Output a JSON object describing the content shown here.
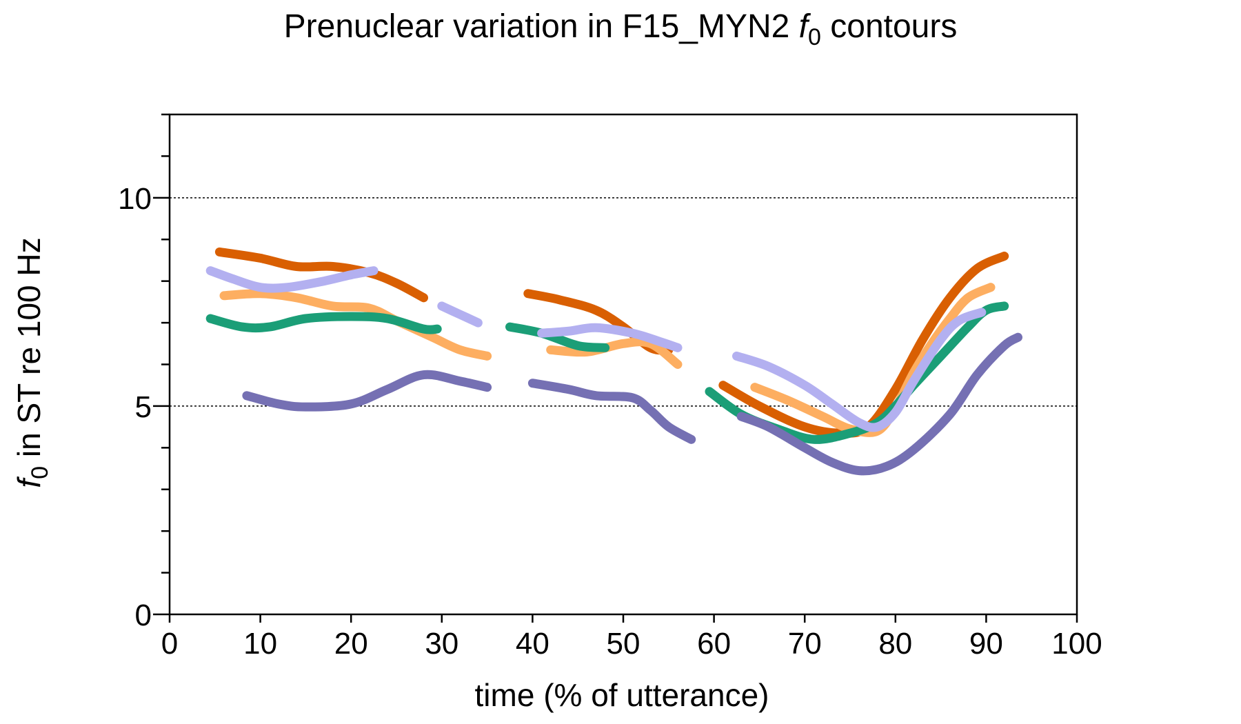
{
  "chart_data": {
    "type": "line",
    "title": {
      "prefix": "Prenuclear variation in F15_MYN2 ",
      "symbol": "f",
      "subscript": "0",
      "suffix": " contours"
    },
    "xlabel": "time (% of utterance)",
    "ylabel": {
      "symbol": "f",
      "subscript": "0",
      "suffix": " in ST re 100 Hz"
    },
    "xlim": [
      0,
      100
    ],
    "ylim": [
      0,
      12
    ],
    "x_ticks": [
      0,
      10,
      20,
      30,
      40,
      50,
      60,
      70,
      80,
      90,
      100
    ],
    "y_ticks_labeled": [
      0,
      5,
      10
    ],
    "y_ticks_minor": [
      1,
      2,
      3,
      4,
      6,
      7,
      8,
      9,
      11,
      12
    ],
    "reference_lines_y": [
      5,
      10
    ],
    "grid": false,
    "legend": "none",
    "series": [
      {
        "color": "#d95f02",
        "segments": [
          [
            [
              5.5,
              8.7
            ],
            [
              10,
              8.55
            ],
            [
              14,
              8.35
            ],
            [
              18,
              8.35
            ],
            [
              22,
              8.2
            ],
            [
              25,
              7.95
            ],
            [
              28,
              7.6
            ]
          ],
          [
            [
              39.5,
              7.7
            ],
            [
              43,
              7.55
            ],
            [
              47,
              7.3
            ],
            [
              50,
              6.9
            ],
            [
              53,
              6.4
            ],
            [
              55,
              6.35
            ]
          ],
          [
            [
              61,
              5.5
            ],
            [
              65,
              5.0
            ],
            [
              70,
              4.5
            ],
            [
              74,
              4.35
            ],
            [
              77,
              4.5
            ],
            [
              80,
              5.4
            ],
            [
              83,
              6.6
            ],
            [
              86,
              7.6
            ],
            [
              89,
              8.3
            ],
            [
              92,
              8.6
            ]
          ]
        ]
      },
      {
        "color": "#fdae61",
        "segments": [
          [
            [
              6,
              7.65
            ],
            [
              10,
              7.7
            ],
            [
              14,
              7.6
            ],
            [
              18,
              7.4
            ],
            [
              22,
              7.35
            ],
            [
              25,
              7.05
            ],
            [
              29,
              6.65
            ],
            [
              32,
              6.35
            ],
            [
              35,
              6.2
            ]
          ],
          [
            [
              42,
              6.35
            ],
            [
              46,
              6.3
            ],
            [
              50,
              6.5
            ],
            [
              53,
              6.5
            ],
            [
              56,
              6.0
            ]
          ],
          [
            [
              64.5,
              5.45
            ],
            [
              68,
              5.15
            ],
            [
              72,
              4.75
            ],
            [
              75,
              4.45
            ],
            [
              78,
              4.4
            ],
            [
              80,
              4.95
            ],
            [
              82,
              5.8
            ],
            [
              84,
              6.5
            ],
            [
              86,
              7.1
            ],
            [
              88,
              7.6
            ],
            [
              90.5,
              7.85
            ]
          ]
        ]
      },
      {
        "color": "#1b9e77",
        "segments": [
          [
            [
              4.5,
              7.1
            ],
            [
              8,
              6.9
            ],
            [
              11,
              6.9
            ],
            [
              15,
              7.1
            ],
            [
              20,
              7.15
            ],
            [
              24,
              7.1
            ],
            [
              28,
              6.85
            ],
            [
              29.5,
              6.85
            ]
          ],
          [
            [
              37.5,
              6.9
            ],
            [
              41,
              6.75
            ],
            [
              45,
              6.45
            ],
            [
              48,
              6.4
            ]
          ],
          [
            [
              59.5,
              5.35
            ],
            [
              63,
              4.8
            ],
            [
              67,
              4.45
            ],
            [
              71,
              4.2
            ],
            [
              75,
              4.35
            ],
            [
              78,
              4.6
            ],
            [
              80,
              5.0
            ],
            [
              82,
              5.5
            ],
            [
              85,
              6.2
            ],
            [
              88,
              6.9
            ],
            [
              90,
              7.3
            ],
            [
              92,
              7.4
            ]
          ]
        ]
      },
      {
        "color": "#7570b3",
        "segments": [
          [
            [
              8.5,
              5.25
            ],
            [
              12,
              5.05
            ],
            [
              15,
              4.98
            ],
            [
              20,
              5.05
            ],
            [
              24,
              5.4
            ],
            [
              28,
              5.75
            ],
            [
              32,
              5.6
            ],
            [
              35,
              5.45
            ]
          ],
          [
            [
              40,
              5.55
            ],
            [
              44,
              5.4
            ],
            [
              47,
              5.25
            ],
            [
              51,
              5.2
            ],
            [
              53,
              4.9
            ],
            [
              55,
              4.5
            ],
            [
              57.5,
              4.2
            ]
          ],
          [
            [
              63,
              4.75
            ],
            [
              66,
              4.5
            ],
            [
              70,
              4.0
            ],
            [
              73,
              3.65
            ],
            [
              76,
              3.45
            ],
            [
              79,
              3.55
            ],
            [
              82,
              3.95
            ],
            [
              86,
              4.8
            ],
            [
              89,
              5.75
            ],
            [
              92,
              6.45
            ],
            [
              93.5,
              6.65
            ]
          ]
        ]
      },
      {
        "color": "#b3b0f0",
        "segments": [
          [
            [
              4.5,
              8.25
            ],
            [
              7,
              8.05
            ],
            [
              10,
              7.85
            ],
            [
              13,
              7.85
            ],
            [
              17,
              8.0
            ],
            [
              20,
              8.15
            ],
            [
              22.5,
              8.25
            ]
          ],
          [
            [
              30,
              7.4
            ],
            [
              32,
              7.2
            ],
            [
              34,
              7.0
            ]
          ],
          [
            [
              41,
              6.75
            ],
            [
              44,
              6.8
            ],
            [
              47,
              6.88
            ],
            [
              51,
              6.75
            ],
            [
              54,
              6.55
            ],
            [
              56,
              6.4
            ]
          ],
          [
            [
              62.5,
              6.2
            ],
            [
              66,
              5.95
            ],
            [
              70,
              5.5
            ],
            [
              73,
              5.05
            ],
            [
              76,
              4.6
            ],
            [
              78,
              4.5
            ],
            [
              80,
              4.85
            ],
            [
              82,
              5.6
            ],
            [
              85,
              6.6
            ],
            [
              87,
              7.05
            ],
            [
              89.5,
              7.25
            ]
          ]
        ]
      }
    ]
  }
}
